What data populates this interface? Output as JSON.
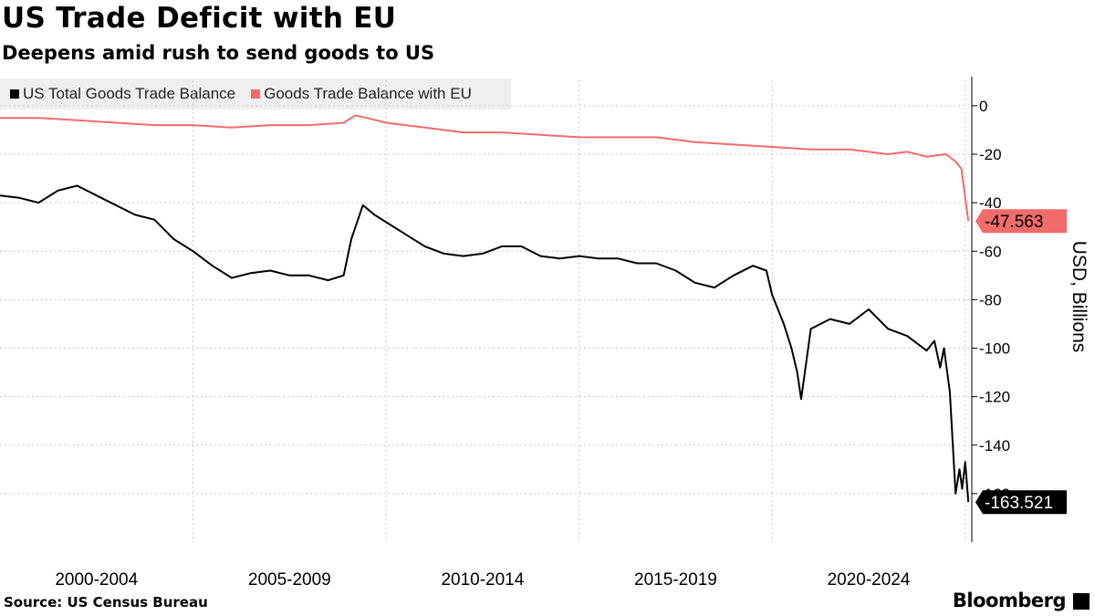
{
  "title": "US Trade Deficit with EU",
  "subtitle": "Deepens amid rush to send goods to US",
  "source": "Source: US Census Bureau",
  "brand": "Bloomberg",
  "colors": {
    "us_total": "#000000",
    "eu": "#f26b6b",
    "grid": "#c8c8c8",
    "axis": "#000000"
  },
  "chart_data": {
    "type": "line",
    "title": "",
    "ylabel": "USD, Billions",
    "ylim": [
      -180,
      12
    ],
    "y_ticks": [
      0,
      -20,
      -40,
      -60,
      -80,
      -100,
      -120,
      -140,
      -160
    ],
    "x_range": [
      2000,
      2025.17
    ],
    "x_tick_labels": [
      "2000-2004",
      "2005-2009",
      "2010-2014",
      "2015-2019",
      "2020-2024"
    ],
    "legend": "top-left",
    "grid": true,
    "series": [
      {
        "name": "US Total Goods Trade Balance",
        "color": "#000000",
        "last_value": -163.521,
        "points": [
          [
            2000.0,
            -37
          ],
          [
            2000.5,
            -38
          ],
          [
            2001.0,
            -40
          ],
          [
            2001.5,
            -35
          ],
          [
            2002.0,
            -33
          ],
          [
            2002.5,
            -37
          ],
          [
            2003.0,
            -41
          ],
          [
            2003.5,
            -45
          ],
          [
            2004.0,
            -47
          ],
          [
            2004.5,
            -55
          ],
          [
            2005.0,
            -60
          ],
          [
            2005.5,
            -66
          ],
          [
            2006.0,
            -71
          ],
          [
            2006.5,
            -69
          ],
          [
            2007.0,
            -68
          ],
          [
            2007.5,
            -70
          ],
          [
            2008.0,
            -70
          ],
          [
            2008.5,
            -72
          ],
          [
            2008.9,
            -70
          ],
          [
            2009.1,
            -55
          ],
          [
            2009.4,
            -41
          ],
          [
            2009.7,
            -45
          ],
          [
            2010.0,
            -48
          ],
          [
            2010.5,
            -53
          ],
          [
            2011.0,
            -58
          ],
          [
            2011.5,
            -61
          ],
          [
            2012.0,
            -62
          ],
          [
            2012.5,
            -61
          ],
          [
            2013.0,
            -58
          ],
          [
            2013.5,
            -58
          ],
          [
            2014.0,
            -62
          ],
          [
            2014.5,
            -63
          ],
          [
            2015.0,
            -62
          ],
          [
            2015.5,
            -63
          ],
          [
            2016.0,
            -63
          ],
          [
            2016.5,
            -65
          ],
          [
            2017.0,
            -65
          ],
          [
            2017.5,
            -68
          ],
          [
            2018.0,
            -73
          ],
          [
            2018.5,
            -75
          ],
          [
            2019.0,
            -70
          ],
          [
            2019.5,
            -66
          ],
          [
            2019.85,
            -68
          ],
          [
            2020.0,
            -78
          ],
          [
            2020.3,
            -90
          ],
          [
            2020.5,
            -100
          ],
          [
            2020.65,
            -110
          ],
          [
            2020.75,
            -121
          ],
          [
            2021.0,
            -92
          ],
          [
            2021.5,
            -88
          ],
          [
            2022.0,
            -90
          ],
          [
            2022.5,
            -84
          ],
          [
            2023.0,
            -92
          ],
          [
            2023.5,
            -95
          ],
          [
            2024.0,
            -101
          ],
          [
            2024.2,
            -97
          ],
          [
            2024.35,
            -108
          ],
          [
            2024.45,
            -100
          ],
          [
            2024.6,
            -118
          ],
          [
            2024.75,
            -160
          ],
          [
            2024.85,
            -150
          ],
          [
            2024.92,
            -158
          ],
          [
            2025.0,
            -147
          ],
          [
            2025.08,
            -163.521
          ]
        ]
      },
      {
        "name": "Goods Trade Balance with EU",
        "color": "#f26b6b",
        "last_value": -47.563,
        "points": [
          [
            2000.0,
            -5
          ],
          [
            2001.0,
            -5
          ],
          [
            2002.0,
            -6
          ],
          [
            2003.0,
            -7
          ],
          [
            2004.0,
            -8
          ],
          [
            2005.0,
            -8
          ],
          [
            2006.0,
            -9
          ],
          [
            2007.0,
            -8
          ],
          [
            2008.0,
            -8
          ],
          [
            2008.9,
            -7
          ],
          [
            2009.2,
            -4
          ],
          [
            2009.5,
            -5
          ],
          [
            2010.0,
            -7
          ],
          [
            2011.0,
            -9
          ],
          [
            2012.0,
            -11
          ],
          [
            2013.0,
            -11
          ],
          [
            2014.0,
            -12
          ],
          [
            2015.0,
            -13
          ],
          [
            2016.0,
            -13
          ],
          [
            2017.0,
            -13
          ],
          [
            2018.0,
            -15
          ],
          [
            2019.0,
            -16
          ],
          [
            2020.0,
            -17
          ],
          [
            2021.0,
            -18
          ],
          [
            2022.0,
            -18
          ],
          [
            2023.0,
            -20
          ],
          [
            2023.5,
            -19
          ],
          [
            2024.0,
            -21
          ],
          [
            2024.5,
            -20
          ],
          [
            2024.75,
            -23
          ],
          [
            2024.9,
            -26
          ],
          [
            2025.0,
            -38
          ],
          [
            2025.08,
            -47.563
          ]
        ]
      }
    ]
  }
}
